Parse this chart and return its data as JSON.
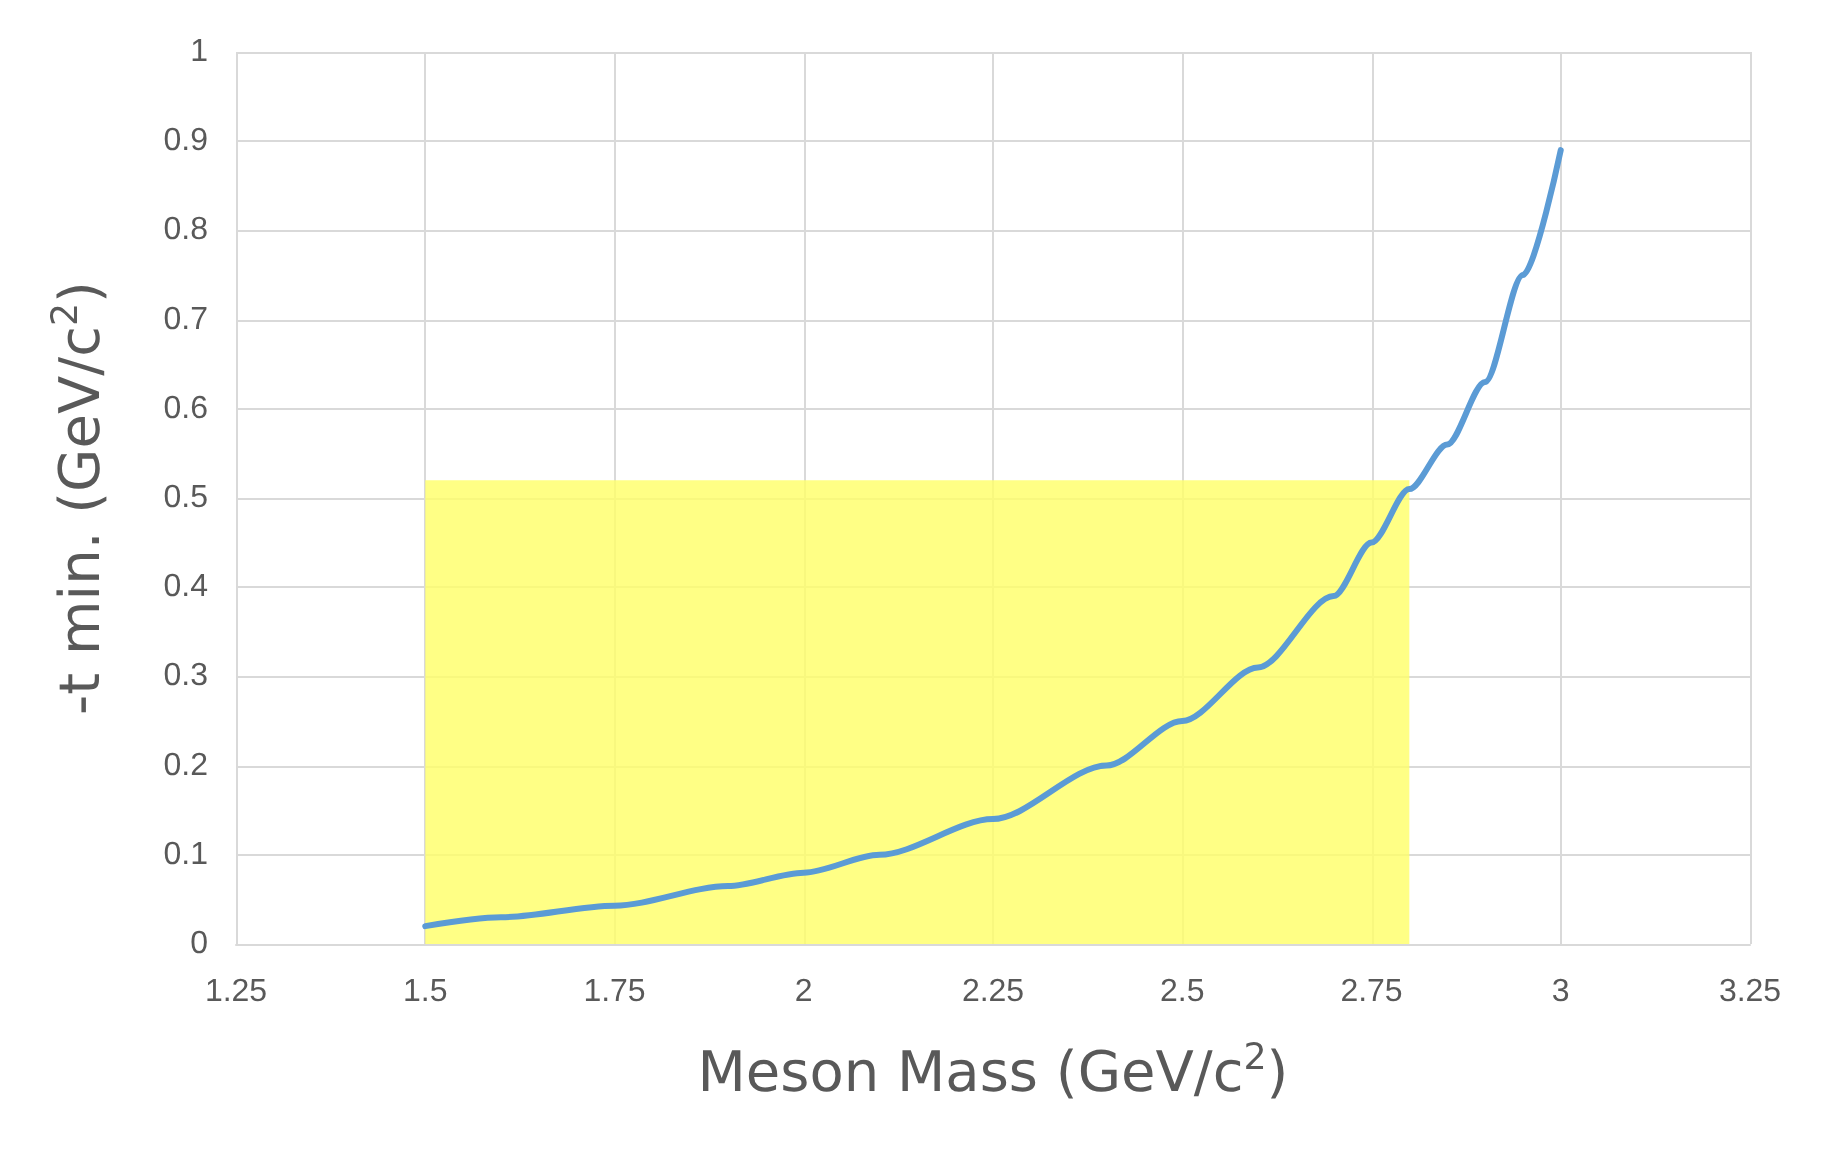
{
  "chart_data": {
    "type": "line",
    "xlabel": "Meson Mass (GeV/c$^{2}$)",
    "ylabel": "-t min. (GeV/c$^{2}$)",
    "xlim": [
      1.25,
      3.25
    ],
    "xticks": [
      1.25,
      1.5,
      1.75,
      2,
      2.25,
      2.5,
      2.75,
      3,
      3.25
    ],
    "ylim": [
      0,
      1
    ],
    "yticks": [
      0,
      0.1,
      0.2,
      0.3,
      0.4,
      0.5,
      0.6,
      0.7,
      0.8,
      0.9,
      1
    ],
    "grid": true,
    "marker": "none",
    "line_style": "solid",
    "series": [
      {
        "color": "#5b9bd5",
        "x": [
          1.5,
          1.6,
          1.75,
          1.9,
          2,
          2.1,
          2.25,
          2.4,
          2.5,
          2.6,
          2.7,
          2.75,
          2.8,
          2.85,
          2.9,
          2.95,
          3
        ],
        "values": [
          0.02,
          0.03,
          0.043,
          0.065,
          0.08,
          0.1,
          0.14,
          0.2,
          0.25,
          0.31,
          0.39,
          0.45,
          0.51,
          0.56,
          0.63,
          0.75,
          0.89
        ]
      },
      {
        "type": "area",
        "color": "#ffff66",
        "x": [
          1.5,
          2.8
        ],
        "values": [
          0.52,
          0.52
        ]
      }
    ]
  }
}
